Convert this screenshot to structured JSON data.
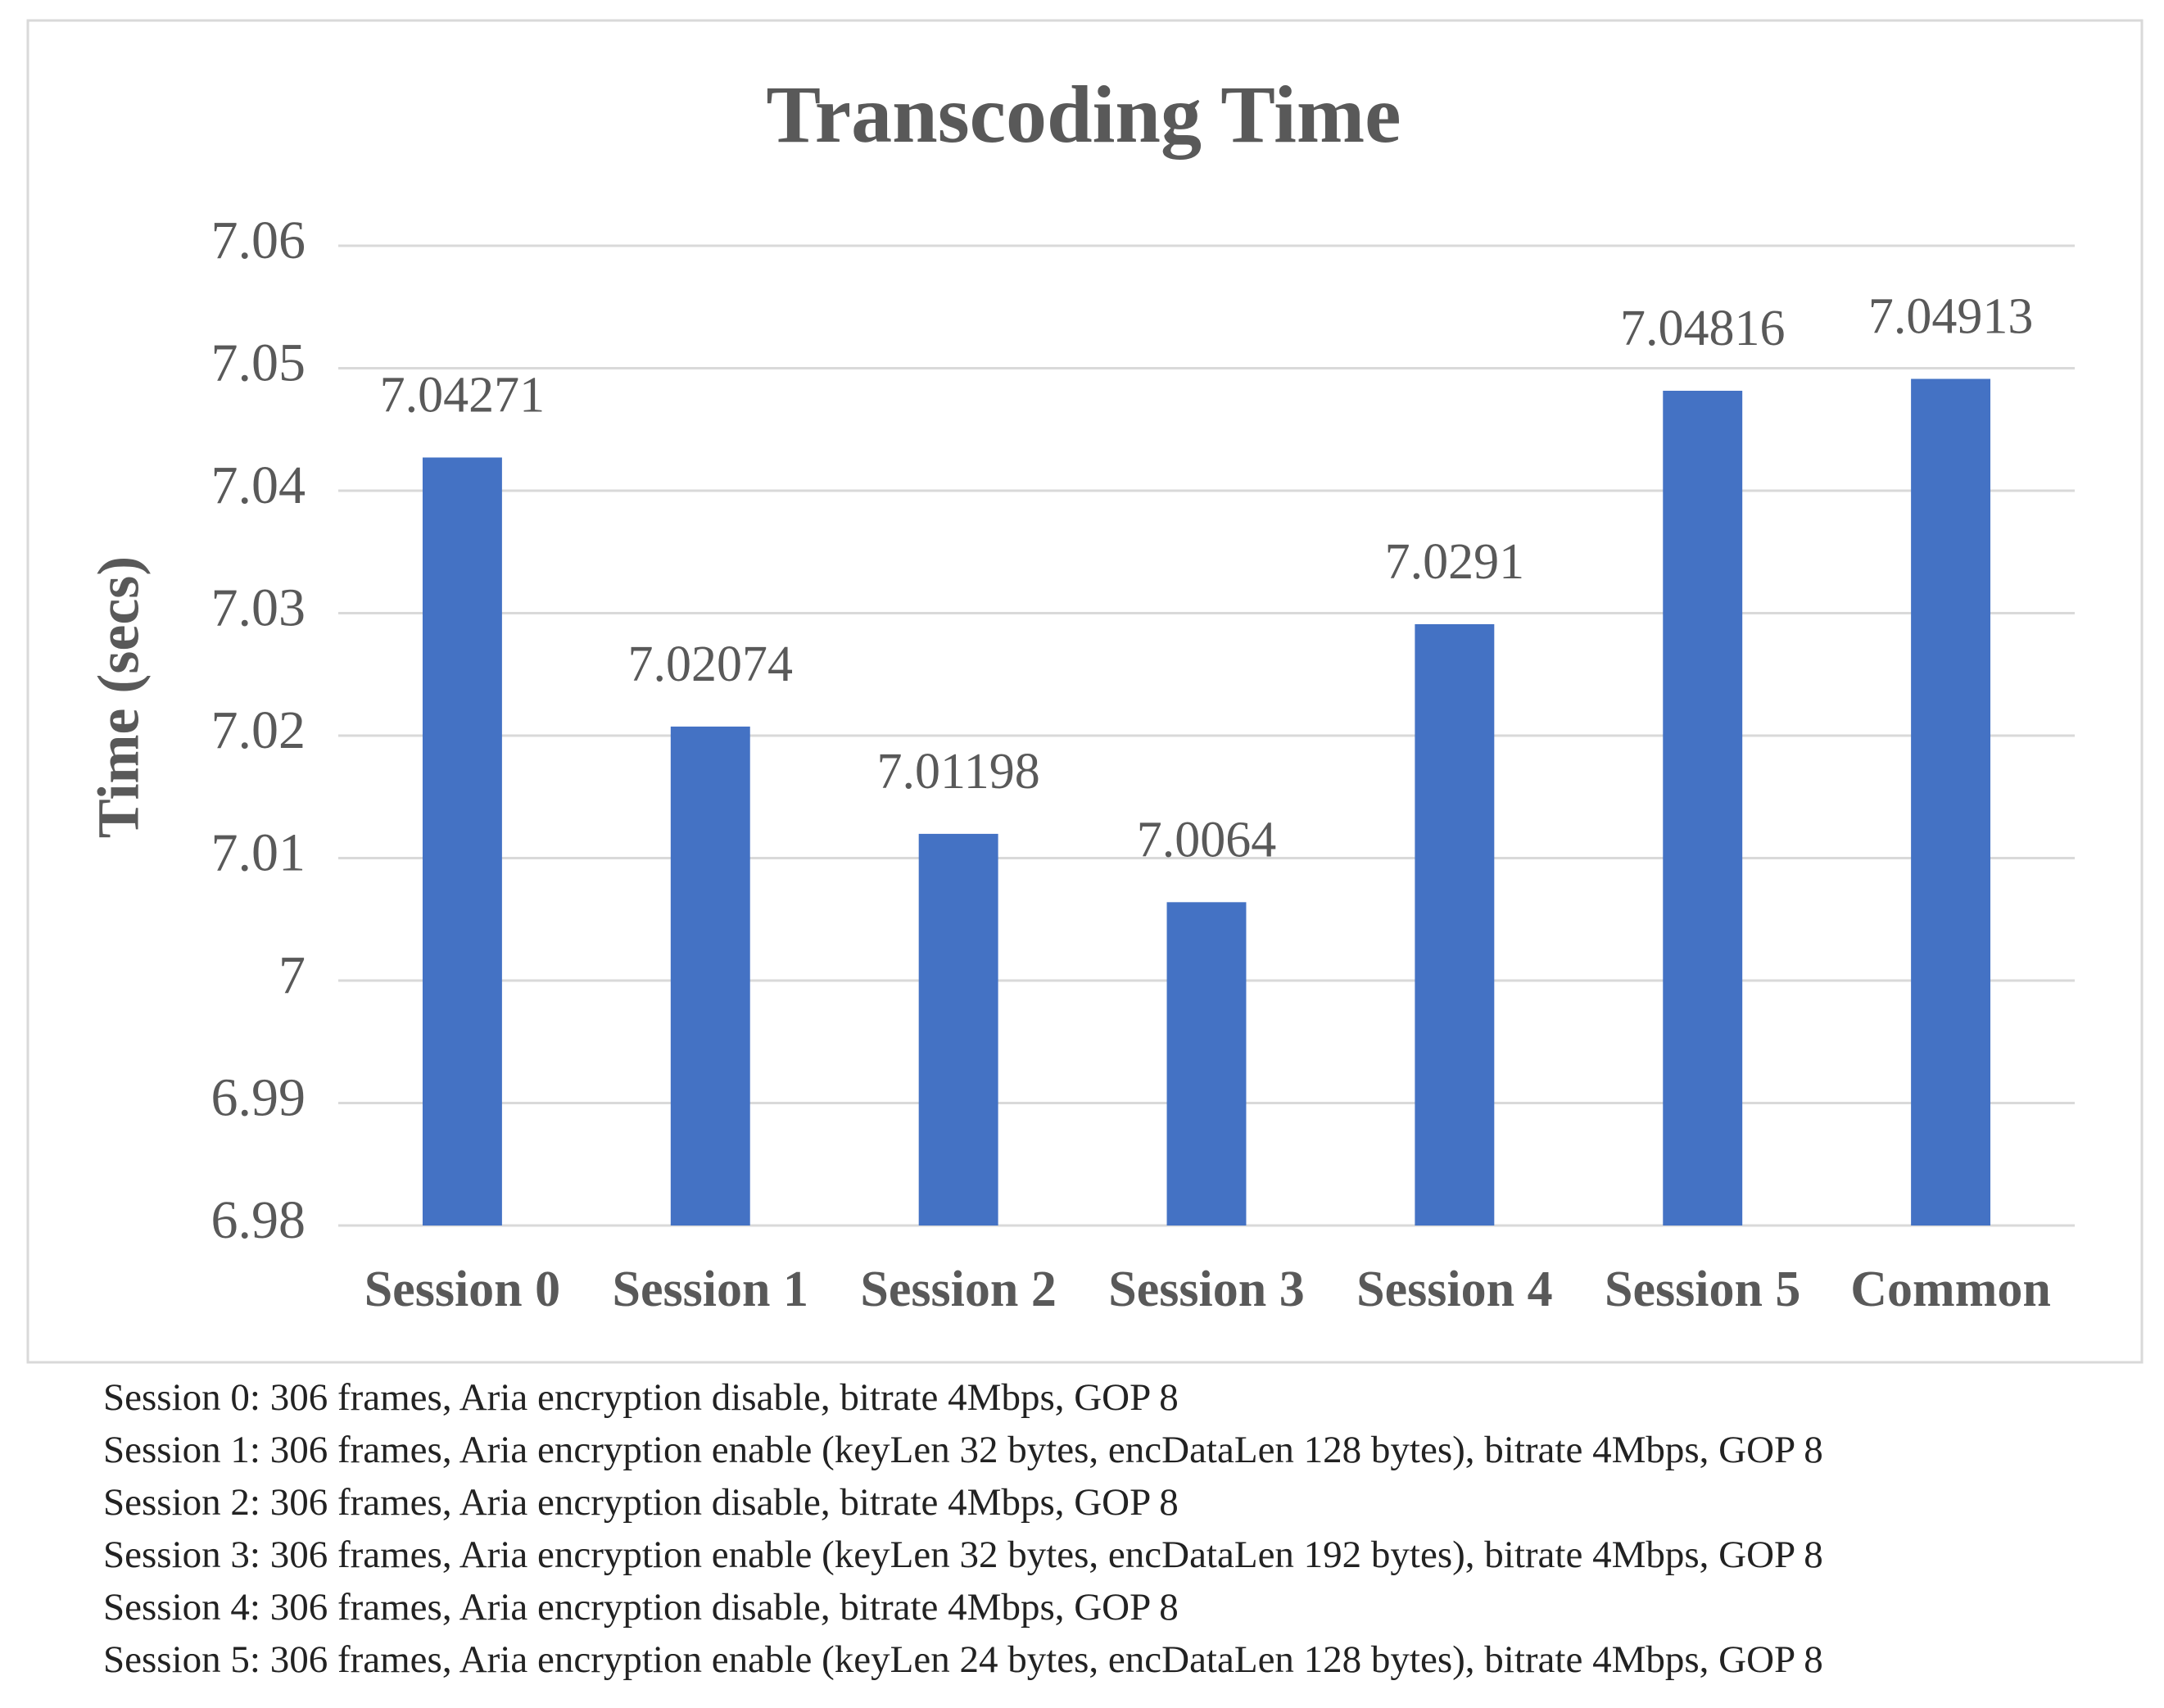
{
  "chart_data": {
    "type": "bar",
    "title": "Transcoding Time",
    "y_label": "Time (secs)",
    "categories": [
      "Session 0",
      "Session 1",
      "Session 2",
      "Session 3",
      "Session 4",
      "Session 5",
      "Common"
    ],
    "values": [
      7.04271,
      7.02074,
      7.01198,
      7.0064,
      7.0291,
      7.04816,
      7.04913
    ],
    "color": "#4472c4",
    "ylim": [
      6.98,
      7.06
    ],
    "yticks": [
      6.98,
      6.99,
      7,
      7.01,
      7.02,
      7.03,
      7.04,
      7.05,
      7.06
    ],
    "grid": true
  },
  "notes": [
    "Session 0: 306 frames, Aria encryption disable, bitrate 4Mbps, GOP 8",
    "Session 1: 306 frames, Aria encryption enable (keyLen 32 bytes, encDataLen 128 bytes), bitrate 4Mbps, GOP 8",
    "Session 2: 306 frames, Aria encryption disable, bitrate 4Mbps, GOP 8",
    "Session 3: 306 frames, Aria encryption enable (keyLen 32 bytes, encDataLen 192 bytes), bitrate 4Mbps, GOP 8",
    "Session 4: 306 frames, Aria encryption disable, bitrate 4Mbps, GOP 8",
    "Session 5: 306 frames, Aria encryption enable (keyLen 24 bytes, encDataLen 128 bytes), bitrate 4Mbps, GOP 8"
  ]
}
